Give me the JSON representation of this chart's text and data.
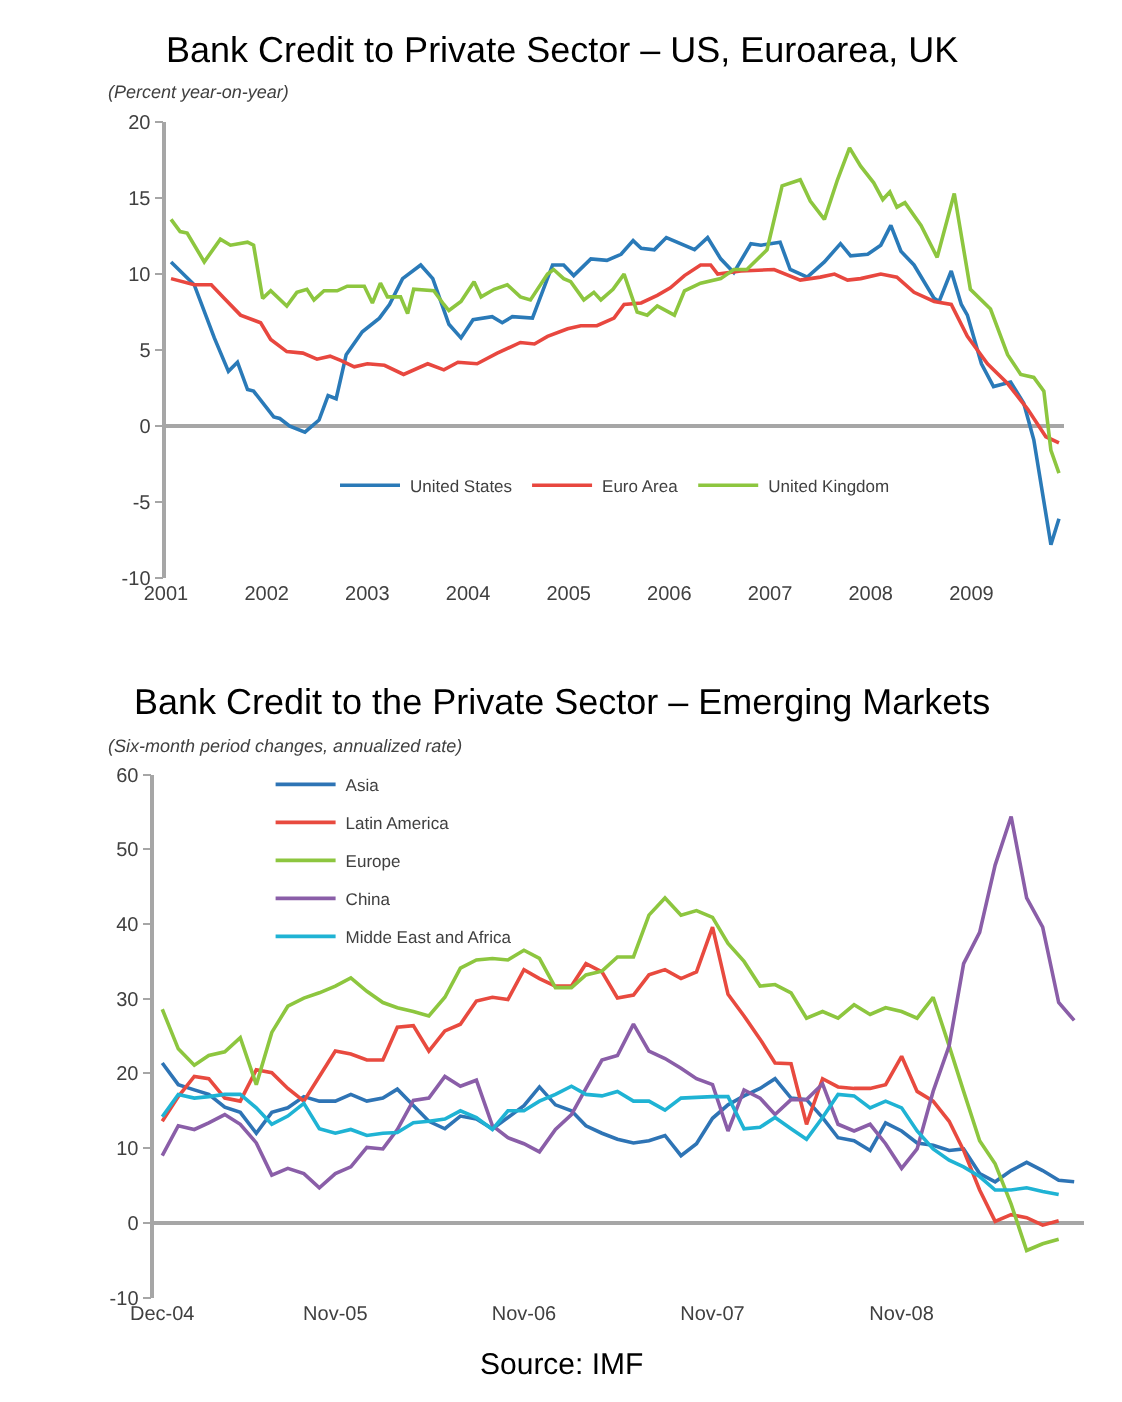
{
  "chart_data": [
    {
      "type": "line",
      "title": "Bank Credit to Private Sector – US, Euroarea, UK",
      "subtitle": "(Percent year-on-year)",
      "xlim": [
        2001,
        2009.92
      ],
      "xticks": [
        2001,
        2002,
        2003,
        2004,
        2005,
        2006,
        2007,
        2008,
        2009
      ],
      "ylim": [
        -10,
        20
      ],
      "yticks": [
        -10,
        -5,
        0,
        5,
        10,
        15,
        20
      ],
      "legend": "bottom",
      "line_style": "solid",
      "series": [
        {
          "name": "United States",
          "color": "#2a7ab8",
          "x": [
            2001.05,
            2001.28,
            2001.48,
            2001.62,
            2001.71,
            2001.81,
            2001.87,
            2002.07,
            2002.13,
            2002.23,
            2002.38,
            2002.52,
            2002.61,
            2002.69,
            2002.79,
            2002.95,
            2003.12,
            2003.22,
            2003.35,
            2003.53,
            2003.65,
            2003.81,
            2003.93,
            2004.05,
            2004.24,
            2004.34,
            2004.44,
            2004.64,
            2004.84,
            2004.95,
            2005.05,
            2005.22,
            2005.38,
            2005.52,
            2005.64,
            2005.72,
            2005.85,
            2005.97,
            2006.11,
            2006.25,
            2006.38,
            2006.51,
            2006.64,
            2006.81,
            2006.91,
            2007.1,
            2007.2,
            2007.37,
            2007.54,
            2007.7,
            2007.8,
            2007.97,
            2008.1,
            2008.2,
            2008.3,
            2008.43,
            2008.63,
            2008.68,
            2008.8,
            2008.9,
            2008.96,
            2009.1,
            2009.22,
            2009.39,
            2009.52,
            2009.62,
            2009.79,
            2009.87
          ],
          "values": [
            10.8,
            9.3,
            5.8,
            3.6,
            4.2,
            2.4,
            2.3,
            0.6,
            0.5,
            0,
            -0.4,
            0.4,
            2.0,
            1.8,
            4.7,
            6.2,
            7.1,
            8.0,
            9.7,
            10.6,
            9.7,
            6.7,
            5.8,
            7.0,
            7.2,
            6.8,
            7.2,
            7.1,
            10.6,
            10.6,
            9.9,
            11.0,
            10.9,
            11.3,
            12.2,
            11.7,
            11.6,
            12.4,
            12.0,
            11.6,
            12.4,
            11.0,
            10.1,
            12.0,
            11.9,
            12.1,
            10.3,
            9.8,
            10.8,
            12.0,
            11.2,
            11.3,
            11.9,
            13.2,
            11.5,
            10.6,
            8.4,
            8.2,
            10.2,
            8.0,
            7.3,
            4.1,
            2.6,
            2.9,
            1.5,
            -0.9,
            -7.8,
            -6.1
          ]
        },
        {
          "name": "Euro Area",
          "color": "#e8473f",
          "x": [
            2001.05,
            2001.28,
            2001.45,
            2001.58,
            2001.74,
            2001.94,
            2002.04,
            2002.2,
            2002.36,
            2002.5,
            2002.63,
            2002.74,
            2002.87,
            2003.0,
            2003.17,
            2003.36,
            2003.6,
            2003.76,
            2003.9,
            2004.09,
            2004.29,
            2004.52,
            2004.66,
            2004.79,
            2004.99,
            2005.12,
            2005.28,
            2005.45,
            2005.55,
            2005.72,
            2005.88,
            2006.01,
            2006.15,
            2006.31,
            2006.41,
            2006.48,
            2006.71,
            2007.04,
            2007.3,
            2007.5,
            2007.64,
            2007.77,
            2007.9,
            2008.1,
            2008.26,
            2008.43,
            2008.63,
            2008.8,
            2008.96,
            2009.16,
            2009.36,
            2009.56,
            2009.74,
            2009.87
          ],
          "values": [
            9.7,
            9.3,
            9.3,
            8.4,
            7.3,
            6.8,
            5.7,
            4.9,
            4.8,
            4.4,
            4.6,
            4.3,
            3.9,
            4.1,
            4.0,
            3.4,
            4.1,
            3.7,
            4.2,
            4.1,
            4.8,
            5.5,
            5.4,
            5.9,
            6.4,
            6.6,
            6.6,
            7.1,
            8.0,
            8.1,
            8.6,
            9.1,
            9.9,
            10.6,
            10.6,
            10.0,
            10.2,
            10.3,
            9.6,
            9.8,
            10.0,
            9.6,
            9.7,
            10.0,
            9.8,
            8.8,
            8.2,
            8.0,
            5.9,
            4.1,
            2.8,
            1.1,
            -0.7,
            -1.1
          ]
        },
        {
          "name": "United Kingdom",
          "color": "#8dc63f",
          "x": [
            2001.05,
            2001.14,
            2001.21,
            2001.38,
            2001.54,
            2001.64,
            2001.81,
            2001.87,
            2001.96,
            2002.04,
            2002.2,
            2002.3,
            2002.4,
            2002.47,
            2002.57,
            2002.7,
            2002.8,
            2002.97,
            2003.05,
            2003.13,
            2003.2,
            2003.33,
            2003.4,
            2003.46,
            2003.66,
            2003.76,
            2003.81,
            2003.93,
            2004.06,
            2004.13,
            2004.26,
            2004.39,
            2004.52,
            2004.62,
            2004.79,
            2004.85,
            2004.95,
            2005.02,
            2005.15,
            2005.25,
            2005.32,
            2005.44,
            2005.55,
            2005.68,
            2005.78,
            2005.88,
            2006.05,
            2006.15,
            2006.31,
            2006.51,
            2006.64,
            2006.77,
            2006.97,
            2007.12,
            2007.3,
            2007.4,
            2007.54,
            2007.67,
            2007.79,
            2007.9,
            2008.03,
            2008.12,
            2008.19,
            2008.26,
            2008.34,
            2008.5,
            2008.66,
            2008.83,
            2008.99,
            2009.19,
            2009.36,
            2009.49,
            2009.62,
            2009.72,
            2009.79,
            2009.87
          ],
          "values": [
            13.6,
            12.8,
            12.7,
            10.8,
            12.3,
            11.9,
            12.1,
            11.9,
            8.4,
            8.9,
            7.9,
            8.8,
            9.0,
            8.3,
            8.9,
            8.9,
            9.2,
            9.2,
            8.1,
            9.4,
            8.5,
            8.5,
            7.4,
            9.0,
            8.9,
            8.0,
            7.6,
            8.2,
            9.5,
            8.5,
            9.0,
            9.3,
            8.5,
            8.3,
            10.0,
            10.3,
            9.7,
            9.5,
            8.3,
            8.8,
            8.3,
            9.0,
            10.0,
            7.5,
            7.3,
            7.9,
            7.3,
            8.9,
            9.4,
            9.7,
            10.3,
            10.3,
            11.6,
            15.8,
            16.2,
            14.8,
            13.6,
            16.2,
            18.3,
            17.1,
            16.0,
            14.9,
            15.4,
            14.4,
            14.7,
            13.2,
            11.1,
            15.3,
            9.0,
            7.7,
            4.7,
            3.4,
            3.2,
            2.3,
            -1.6,
            -3.1
          ]
        }
      ]
    },
    {
      "type": "line",
      "title": "Bank Credit to the Private Sector – Emerging Markets",
      "subtitle": "(Six-month period changes, annualized rate)",
      "annotations": [
        "Source: IMF"
      ],
      "xlim": [
        "2004-11-15",
        "2009-10-20"
      ],
      "xticks": [
        {
          "value": "2004-12",
          "label": "Dec-04"
        },
        {
          "value": "2005-11",
          "label": "Nov-05"
        },
        {
          "value": "2006-11",
          "label": "Nov-06"
        },
        {
          "value": "2007-11",
          "label": "Nov-07"
        },
        {
          "value": "2008-11",
          "label": "Nov-08"
        }
      ],
      "ylim": [
        -10,
        60
      ],
      "yticks": [
        -10,
        0,
        10,
        20,
        30,
        40,
        50,
        60
      ],
      "legend": "top left",
      "line_style": "solid",
      "x": [
        "2004-12",
        "2005-01",
        "2005-02",
        "2005-03",
        "2005-04",
        "2005-05",
        "2005-06",
        "2005-07",
        "2005-08",
        "2005-09",
        "2005-10",
        "2005-11",
        "2005-12",
        "2006-01",
        "2006-02",
        "2006-03",
        "2006-04",
        "2006-05",
        "2006-06",
        "2006-07",
        "2006-08",
        "2006-09",
        "2006-10",
        "2006-11",
        "2006-12",
        "2007-01",
        "2007-02",
        "2007-03",
        "2007-04",
        "2007-05",
        "2007-06",
        "2007-07",
        "2007-08",
        "2007-09",
        "2007-10",
        "2007-11",
        "2007-12",
        "2008-01",
        "2008-02",
        "2008-03",
        "2008-04",
        "2008-05",
        "2008-06",
        "2008-07",
        "2008-08",
        "2008-09",
        "2008-10",
        "2008-11",
        "2008-12",
        "2009-01",
        "2009-02",
        "2009-03",
        "2009-04",
        "2009-05",
        "2009-06",
        "2009-07",
        "2009-08",
        "2009-09",
        "2009-10"
      ],
      "series": [
        {
          "name": "Asia",
          "color": "#2e74b5",
          "values": [
            21.4,
            18.5,
            17.8,
            17.2,
            15.5,
            14.8,
            12.0,
            14.8,
            15.4,
            16.9,
            16.3,
            16.3,
            17.2,
            16.3,
            16.7,
            17.9,
            15.7,
            13.6,
            12.6,
            14.3,
            13.9,
            12.6,
            14.1,
            15.7,
            18.2,
            15.8,
            15.0,
            13.0,
            12.0,
            11.2,
            10.7,
            11.0,
            11.7,
            9.0,
            10.6,
            14.0,
            15.8,
            17.0,
            18.0,
            19.3,
            16.7,
            16.5,
            14.1,
            11.4,
            11.0,
            9.7,
            13.4,
            12.3,
            10.7,
            10.4,
            9.7,
            9.9,
            6.6,
            5.5,
            7.0,
            8.1,
            7.0,
            5.7,
            5.5
          ]
        },
        {
          "name": "Latin America",
          "color": "#e84a3f",
          "values": [
            13.6,
            16.9,
            19.6,
            19.3,
            16.7,
            16.3,
            20.5,
            20.1,
            18.0,
            16.3,
            19.6,
            23.0,
            22.6,
            21.8,
            21.8,
            26.2,
            26.4,
            23.0,
            25.7,
            26.6,
            29.7,
            30.2,
            29.9,
            33.9,
            32.7,
            31.7,
            31.7,
            34.7,
            33.6,
            30.1,
            30.5,
            33.2,
            33.9,
            32.7,
            33.6,
            39.6,
            30.6,
            27.7,
            24.6,
            21.4,
            21.3,
            13.2,
            19.3,
            18.2,
            18.0,
            18.0,
            18.5,
            22.3,
            17.6,
            16.3,
            13.6,
            9.7,
            4.4,
            0.2,
            1.1,
            0.7,
            -0.3,
            0.3,
            null
          ]
        },
        {
          "name": "Europe",
          "color": "#8dc63f",
          "values": [
            28.6,
            23.3,
            21.1,
            22.4,
            22.9,
            24.8,
            18.5,
            25.5,
            29.0,
            30.1,
            30.8,
            31.7,
            32.8,
            31.0,
            29.5,
            28.8,
            28.3,
            27.7,
            30.2,
            34.1,
            35.2,
            35.4,
            35.2,
            36.5,
            35.4,
            31.5,
            31.5,
            33.2,
            33.7,
            35.6,
            35.6,
            41.2,
            43.5,
            41.2,
            41.8,
            40.9,
            37.4,
            35.0,
            31.7,
            31.9,
            30.8,
            27.4,
            28.3,
            27.4,
            29.2,
            27.9,
            28.8,
            28.3,
            27.4,
            30.2,
            23.7,
            17.6,
            11.0,
            7.9,
            2.5,
            -3.7,
            -2.8,
            -2.2,
            null
          ]
        },
        {
          "name": "China",
          "color": "#8a5ea8",
          "values": [
            9.0,
            13.0,
            12.5,
            13.4,
            14.5,
            13.2,
            10.7,
            6.4,
            7.3,
            6.6,
            4.7,
            6.6,
            7.5,
            10.1,
            9.9,
            12.5,
            16.4,
            16.7,
            19.6,
            18.3,
            19.1,
            13.0,
            11.4,
            10.6,
            9.5,
            12.5,
            14.5,
            18.0,
            21.8,
            22.4,
            26.6,
            23.0,
            22.0,
            20.7,
            19.3,
            18.5,
            12.3,
            17.8,
            16.7,
            14.5,
            16.5,
            16.5,
            18.6,
            13.2,
            12.3,
            13.2,
            10.6,
            7.3,
            9.9,
            17.6,
            23.7,
            34.7,
            38.9,
            47.9,
            54.4,
            43.5,
            39.6,
            29.5,
            27.1
          ]
        },
        {
          "name": "Midde East and Africa",
          "color": "#1fb3d4",
          "values": [
            14.2,
            17.2,
            16.7,
            16.9,
            17.2,
            17.2,
            15.4,
            13.2,
            14.3,
            16.0,
            12.6,
            12.0,
            12.5,
            11.7,
            12.0,
            12.1,
            13.4,
            13.6,
            13.9,
            15.0,
            14.1,
            12.5,
            15.0,
            15.0,
            16.3,
            17.2,
            18.3,
            17.2,
            17.0,
            17.6,
            16.3,
            16.3,
            15.1,
            16.7,
            16.8,
            16.9,
            16.9,
            12.6,
            12.8,
            14.1,
            12.6,
            11.2,
            14.1,
            17.2,
            17.0,
            15.4,
            16.3,
            15.4,
            12.3,
            9.9,
            8.4,
            7.5,
            6.2,
            4.4,
            4.4,
            4.7,
            4.2,
            3.8,
            null
          ]
        }
      ]
    }
  ]
}
